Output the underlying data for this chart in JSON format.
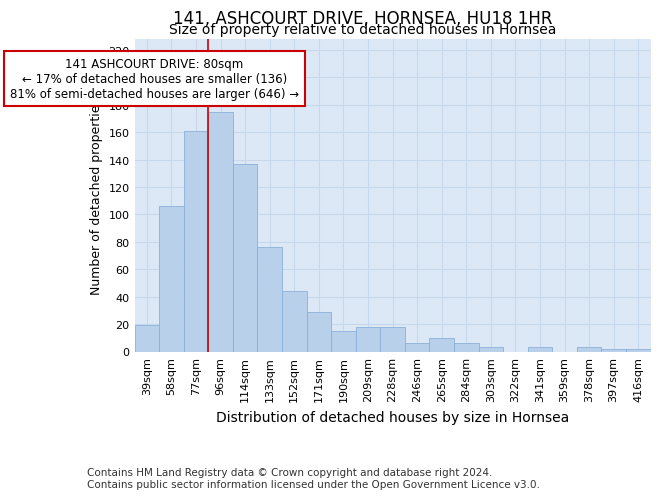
{
  "title": "141, ASHCOURT DRIVE, HORNSEA, HU18 1HR",
  "subtitle": "Size of property relative to detached houses in Hornsea",
  "xlabel": "Distribution of detached houses by size in Hornsea",
  "ylabel": "Number of detached properties",
  "categories": [
    "39sqm",
    "58sqm",
    "77sqm",
    "96sqm",
    "114sqm",
    "133sqm",
    "152sqm",
    "171sqm",
    "190sqm",
    "209sqm",
    "228sqm",
    "246sqm",
    "265sqm",
    "284sqm",
    "303sqm",
    "322sqm",
    "341sqm",
    "359sqm",
    "378sqm",
    "397sqm",
    "416sqm"
  ],
  "values": [
    19,
    106,
    161,
    175,
    137,
    76,
    44,
    29,
    15,
    18,
    18,
    6,
    10,
    6,
    3,
    0,
    3,
    0,
    3,
    2,
    2
  ],
  "bar_color": "#b8d0ea",
  "bar_edgecolor": "#8ab0d8",
  "vline_color": "#cc0000",
  "vline_index": 2.5,
  "annotation_text": "141 ASHCOURT DRIVE: 80sqm\n← 17% of detached houses are smaller (136)\n81% of semi-detached houses are larger (646) →",
  "annotation_box_facecolor": "#ffffff",
  "annotation_box_edgecolor": "#cc0000",
  "ylim": [
    0,
    228
  ],
  "yticks": [
    0,
    20,
    40,
    60,
    80,
    100,
    120,
    140,
    160,
    180,
    200,
    220
  ],
  "grid_color": "#c8d8ec",
  "plot_bg_color": "#dce8f5",
  "fig_bg_color": "#ffffff",
  "title_fontsize": 12,
  "subtitle_fontsize": 10,
  "xlabel_fontsize": 10,
  "ylabel_fontsize": 9,
  "tick_fontsize": 8,
  "annotation_fontsize": 8.5,
  "footer_fontsize": 7.5,
  "footer": "Contains HM Land Registry data © Crown copyright and database right 2024.\nContains public sector information licensed under the Open Government Licence v3.0."
}
